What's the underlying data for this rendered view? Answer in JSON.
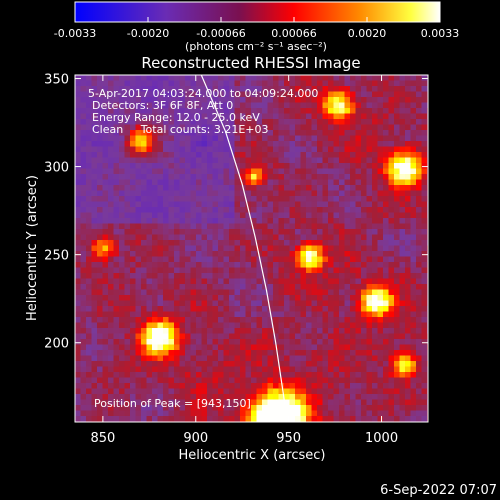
{
  "colorbar": {
    "ticks": [
      "-0.0033",
      "-0.0020",
      "-0.00066",
      "0.00066",
      "0.0020",
      "0.0033"
    ],
    "unit_label": "(photons cm⁻² s⁻¹ asec⁻²)"
  },
  "chart_data": {
    "type": "heatmap",
    "title": "Reconstructed RHESSI Image",
    "xlabel": "Heliocentric X (arcsec)",
    "ylabel": "Heliocentric Y (arcsec)",
    "xlim": [
      835,
      1025
    ],
    "ylim": [
      155,
      352
    ],
    "x_ticks": [
      850,
      900,
      950,
      1000
    ],
    "y_ticks": [
      200,
      250,
      300,
      350
    ],
    "value_range": [
      -0.0033,
      0.0033
    ],
    "colormap": [
      "#0000ff",
      "#6a2cb4",
      "#7a3a9a",
      "#a0203a",
      "#ff0000",
      "#ff8800",
      "#ffff00",
      "#ffffff"
    ],
    "annotations": [
      "5-Apr-2017 04:03:24.000 to 04:09:24.000",
      "Detectors: 3F 6F 8F, Att 0",
      "Energy Range: 12.0 - 25.0 keV",
      "Clean     Total counts: 3.21E+03",
      "Position of Peak = [943,150]"
    ],
    "peak": [
      943,
      150
    ],
    "limb_curve": [
      [
        903,
        352
      ],
      [
        916,
        320
      ],
      [
        925,
        290
      ],
      [
        932,
        260
      ],
      [
        938,
        230
      ],
      [
        943,
        200
      ],
      [
        948,
        165
      ]
    ]
  },
  "footer": {
    "timestamp": "6-Sep-2022 07:07"
  }
}
